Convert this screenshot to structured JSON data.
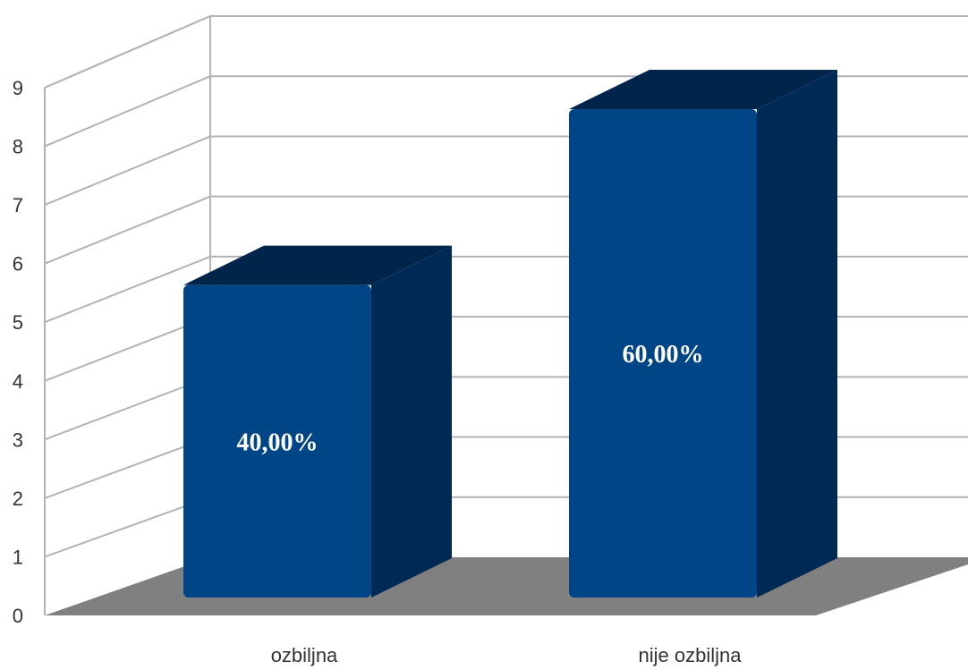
{
  "chart_data": {
    "type": "bar",
    "categories": [
      "ozbiljna",
      "nije ozbiljna"
    ],
    "values": [
      6,
      9
    ],
    "data_labels": [
      "40,00%",
      "60,00%"
    ],
    "y_ticks": [
      "0",
      "1",
      "2",
      "3",
      "4",
      "5",
      "6",
      "7",
      "8",
      "9"
    ],
    "ylim": [
      0,
      9
    ],
    "grid": true,
    "three_d": true,
    "colors": {
      "bar_front": "#004586",
      "bar_side": "#002a55",
      "bar_top": "#00244a",
      "floor": "#808080",
      "grid": "#b3b3b3"
    }
  }
}
